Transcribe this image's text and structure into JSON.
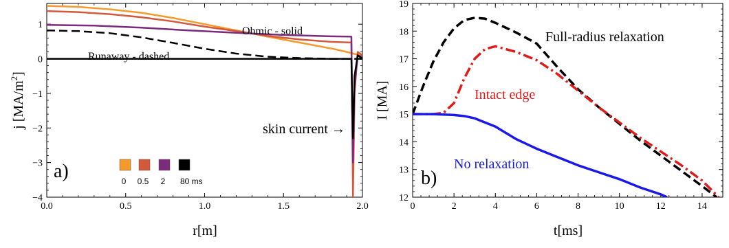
{
  "chart_data": [
    {
      "type": "line",
      "panel_label": "a)",
      "xlabel": "r[m]",
      "ylabel": "j [MA/m",
      "ylabel_sup": "2",
      "ylabel_close": "]",
      "xlim": [
        0,
        2.0
      ],
      "ylim": [
        -4,
        1.6
      ],
      "xticks": [
        0.0,
        0.5,
        1.0,
        1.5,
        2.0
      ],
      "xtick_labels": [
        "0.0",
        "0.5",
        "1.0",
        "1.5",
        "2.0"
      ],
      "yticks": [
        -4,
        -3,
        -2,
        -1,
        0,
        1
      ],
      "ytick_labels": [
        "−4",
        "−3",
        "−2",
        "−1",
        "0",
        "1"
      ],
      "annotations": {
        "ohmic": "Ohmic - solid",
        "runaway": "Runaway - dashed",
        "skin": "skin current →"
      },
      "legend": {
        "items": [
          {
            "label": "0",
            "color": "#f59a2a"
          },
          {
            "label": "0.5",
            "color": "#d4593c"
          },
          {
            "label": "2",
            "color": "#7b2a7c"
          },
          {
            "label": "80 ms",
            "color": "#000000"
          }
        ]
      },
      "series": [
        {
          "label": "0",
          "color": "#f59a2a",
          "dash": "solid",
          "x": [
            0,
            0.2,
            0.4,
            0.6,
            0.8,
            1.0,
            1.2,
            1.4,
            1.6,
            1.8,
            1.9,
            1.95,
            2.0
          ],
          "y": [
            1.53,
            1.5,
            1.43,
            1.33,
            1.18,
            1.0,
            0.82,
            0.64,
            0.47,
            0.3,
            0.2,
            0.14,
            0.1
          ]
        },
        {
          "label": "0.5",
          "color": "#d4593c",
          "dash": "solid",
          "x": [
            0,
            0.2,
            0.4,
            0.6,
            0.8,
            1.0,
            1.2,
            1.4,
            1.6,
            1.8,
            1.93,
            1.935,
            1.94,
            1.95,
            1.97,
            2.0
          ],
          "y": [
            1.38,
            1.35,
            1.29,
            1.2,
            1.08,
            0.93,
            0.8,
            0.66,
            0.56,
            0.49,
            0.47,
            -1.5,
            -4.0,
            -1.0,
            0.2,
            0.1
          ]
        },
        {
          "label": "2",
          "color": "#7b2a7c",
          "dash": "solid",
          "x": [
            0,
            0.3,
            0.6,
            0.9,
            1.2,
            1.5,
            1.8,
            1.93,
            1.935,
            1.94,
            1.95,
            1.97,
            2.0
          ],
          "y": [
            0.98,
            0.96,
            0.9,
            0.82,
            0.75,
            0.69,
            0.65,
            0.64,
            -1.5,
            -3.0,
            -0.8,
            0.1,
            0.05
          ]
        },
        {
          "label": "runaway",
          "color": "#000000",
          "dash": "dashed",
          "x": [
            0,
            0.2,
            0.4,
            0.6,
            0.8,
            1.0,
            1.2,
            1.4,
            1.6,
            1.8,
            2.0
          ],
          "y": [
            0.82,
            0.8,
            0.74,
            0.62,
            0.46,
            0.29,
            0.15,
            0.06,
            0.02,
            0.0,
            0.0
          ]
        },
        {
          "label": "80 ms",
          "color": "#000000",
          "dash": "solid",
          "x": [
            0,
            1.0,
            1.93,
            1.935,
            1.94,
            1.95,
            1.97,
            2.0
          ],
          "y": [
            0.0,
            0.0,
            0.0,
            -1.2,
            -2.3,
            -0.5,
            0.1,
            0.0
          ]
        }
      ]
    },
    {
      "type": "line",
      "panel_label": "b)",
      "xlabel": "t[ms]",
      "ylabel": "I [MA]",
      "xlim": [
        0,
        15
      ],
      "ylim": [
        12,
        19
      ],
      "xticks": [
        0,
        2,
        4,
        6,
        8,
        10,
        12,
        14
      ],
      "xtick_labels": [
        "0",
        "2",
        "4",
        "6",
        "8",
        "10",
        "12",
        "14"
      ],
      "yticks": [
        12,
        13,
        14,
        15,
        16,
        17,
        18,
        19
      ],
      "ytick_labels": [
        "12",
        "13",
        "14",
        "15",
        "16",
        "17",
        "18",
        "19"
      ],
      "series": [
        {
          "label": "Full-radius relaxation",
          "color": "#000000",
          "dash": "dashed",
          "x": [
            0,
            0.5,
            1,
            1.5,
            2,
            2.5,
            3,
            3.5,
            4,
            5,
            6,
            7,
            8,
            9,
            10,
            11,
            12,
            13,
            14,
            14.7
          ],
          "y": [
            15.0,
            16.0,
            16.9,
            17.6,
            18.1,
            18.4,
            18.48,
            18.45,
            18.3,
            17.95,
            17.55,
            16.7,
            15.9,
            15.25,
            14.65,
            14.05,
            13.5,
            12.95,
            12.4,
            12.0
          ]
        },
        {
          "label": "Intact edge",
          "color": "#e11a1a",
          "dash": "dashdot",
          "x": [
            0,
            1,
            1.5,
            2,
            2.5,
            3,
            3.5,
            4,
            5,
            6,
            7,
            8,
            9,
            10,
            11,
            12,
            13,
            14,
            14.8
          ],
          "y": [
            15.0,
            15.0,
            15.05,
            15.4,
            16.3,
            17.0,
            17.35,
            17.45,
            17.25,
            16.95,
            16.45,
            15.85,
            15.25,
            14.7,
            14.15,
            13.65,
            13.15,
            12.6,
            12.0
          ]
        },
        {
          "label": "No relaxation",
          "color": "#1a1ae8",
          "dash": "solid",
          "x": [
            0,
            1,
            2,
            2.5,
            3,
            4,
            5,
            6,
            7,
            8,
            9,
            10,
            11,
            12,
            12.3
          ],
          "y": [
            15.0,
            15.0,
            14.97,
            14.93,
            14.85,
            14.55,
            14.1,
            13.75,
            13.45,
            13.15,
            12.9,
            12.65,
            12.35,
            12.1,
            12.0
          ]
        }
      ]
    }
  ]
}
